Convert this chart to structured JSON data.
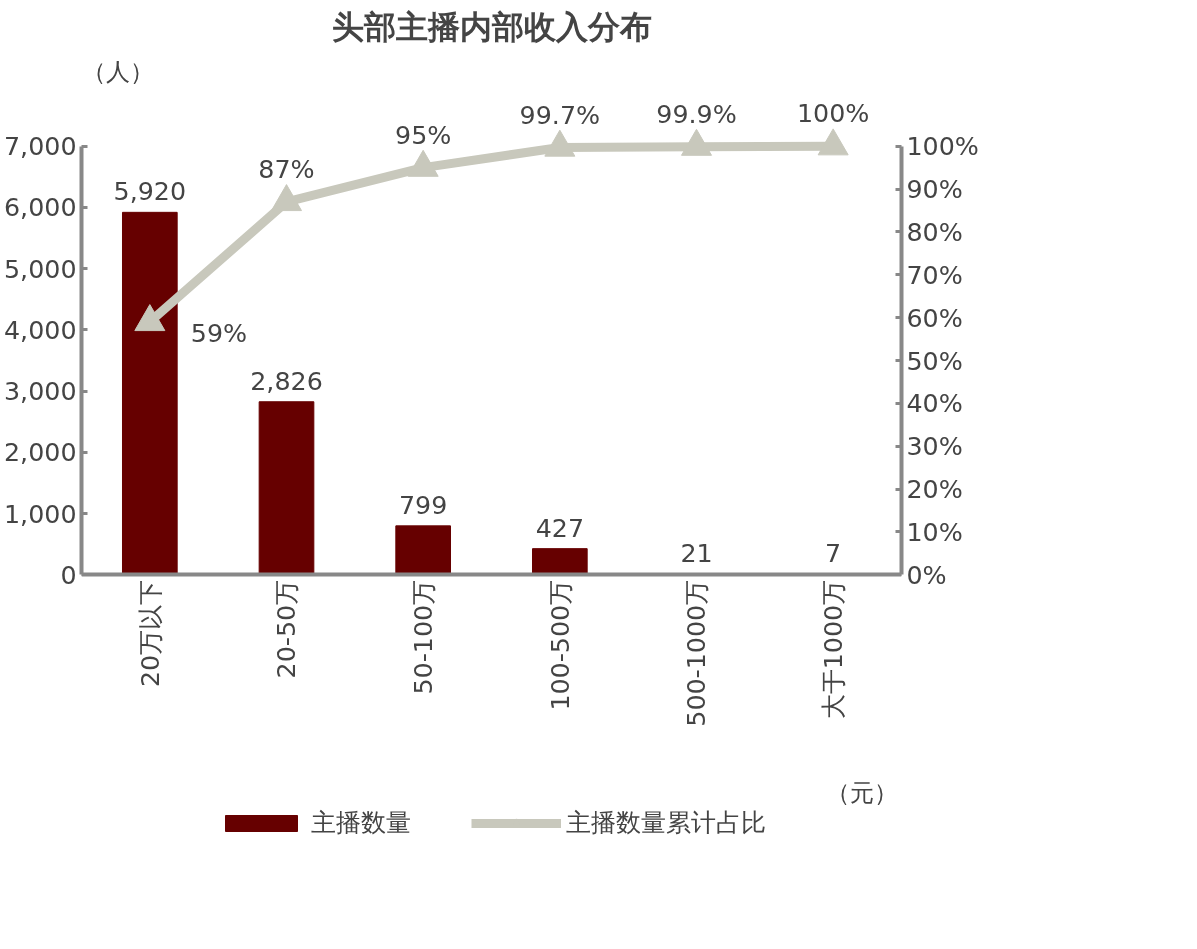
{
  "chart_data": {
    "type": "bar",
    "title": "头部主播内部收入分布",
    "ylabel": "（人）",
    "xlabel": "（元）",
    "categories": [
      "20万以下",
      "20-50万",
      "50-100万",
      "100-500万",
      "500-1000万",
      "大于1000万"
    ],
    "series": [
      {
        "name": "主播数量",
        "color": "#660000",
        "values": [
          5920,
          2826,
          799,
          427,
          21,
          7
        ],
        "value_labels": [
          "5,920",
          "2,826",
          "799",
          "427",
          "21",
          "7"
        ]
      },
      {
        "name": "主播数量累计占比",
        "type": "line",
        "axis": "y2",
        "color": "#c8c8bc",
        "marker": "triangle",
        "line_style": "solid",
        "values": [
          59,
          87,
          95,
          99.7,
          99.9,
          100
        ],
        "value_labels": [
          "59%",
          "87%",
          "95%",
          "99.7%",
          "99.9%",
          "100%"
        ]
      }
    ],
    "ylim": [
      0,
      7000
    ],
    "yticks": [
      {
        "value": 0,
        "label": "0"
      },
      {
        "value": 1000,
        "label": "1,000"
      },
      {
        "value": 2000,
        "label": "2,000"
      },
      {
        "value": 3000,
        "label": "3,000"
      },
      {
        "value": 4000,
        "label": "4,000"
      },
      {
        "value": 5000,
        "label": "5,000"
      },
      {
        "value": 6000,
        "label": "6,000"
      },
      {
        "value": 7000,
        "label": "7,000"
      }
    ],
    "y2lim": [
      0,
      100
    ],
    "y2ticks": [
      {
        "value": 0,
        "label": "0%"
      },
      {
        "value": 10,
        "label": "10%"
      },
      {
        "value": 20,
        "label": "20%"
      },
      {
        "value": 30,
        "label": "30%"
      },
      {
        "value": 40,
        "label": "40%"
      },
      {
        "value": 50,
        "label": "50%"
      },
      {
        "value": 60,
        "label": "60%"
      },
      {
        "value": 70,
        "label": "70%"
      },
      {
        "value": 80,
        "label": "80%"
      },
      {
        "value": 90,
        "label": "90%"
      },
      {
        "value": 100,
        "label": "100%"
      }
    ],
    "grid": false,
    "legend": "bottom"
  }
}
